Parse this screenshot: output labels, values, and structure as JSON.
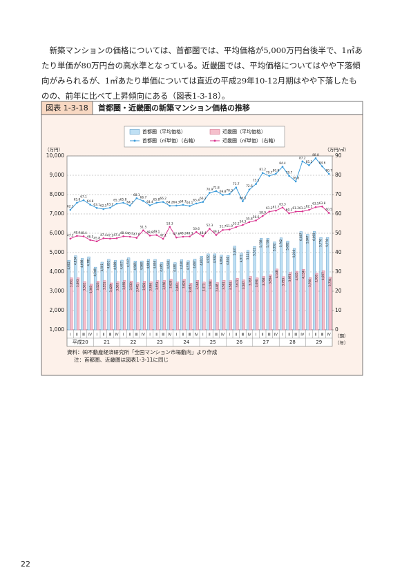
{
  "paragraph": "新築マンションの価格については、首都圏では、平均価格が5,000万円台後半で、1㎡あたり単価が80万円台の高水準となっている。近畿圏では、平均価格についてはやや下落傾向がみられるが、1㎡あたり単価については直近の平成29年10-12月期はやや下落したものの、前年に比べて上昇傾向にある（図表1-3-18）。",
  "figure_label": "図表 1-3-18",
  "figure_title": "首都圏・近畿圏の新築マンション価格の推移",
  "chart_data": {
    "type": "bar",
    "y_unit": "（万円）",
    "y2_unit": "（万円/㎡）",
    "x_unit_quarter": "（期）",
    "x_unit_year": "（年）",
    "categories": [
      "Ⅰ",
      "Ⅱ",
      "Ⅲ",
      "Ⅳ",
      "Ⅰ",
      "Ⅱ",
      "Ⅲ",
      "Ⅳ",
      "Ⅰ",
      "Ⅱ",
      "Ⅲ",
      "Ⅳ",
      "Ⅰ",
      "Ⅱ",
      "Ⅲ",
      "Ⅳ",
      "Ⅰ",
      "Ⅱ",
      "Ⅲ",
      "Ⅳ",
      "Ⅰ",
      "Ⅱ",
      "Ⅲ",
      "Ⅳ",
      "Ⅰ",
      "Ⅱ",
      "Ⅲ",
      "Ⅳ",
      "Ⅰ",
      "Ⅱ",
      "Ⅲ",
      "Ⅳ",
      "Ⅰ",
      "Ⅱ",
      "Ⅲ",
      "Ⅳ",
      "Ⅰ",
      "Ⅱ",
      "Ⅲ",
      "Ⅳ"
    ],
    "years": [
      "平成20",
      "21",
      "22",
      "23",
      "24",
      "25",
      "26",
      "27",
      "28",
      "29"
    ],
    "ylim": [
      1000,
      10000
    ],
    "yticks": [
      {
        "value": 1000,
        "label": "1,000"
      },
      {
        "value": 2000,
        "label": "2,000"
      },
      {
        "value": 3000,
        "label": "3,000"
      },
      {
        "value": 4000,
        "label": "4,000"
      },
      {
        "value": 5000,
        "label": "5,000"
      },
      {
        "value": 6000,
        "label": "6,000"
      },
      {
        "value": 7000,
        "label": "7,000"
      },
      {
        "value": 8000,
        "label": "8,000"
      },
      {
        "value": 9000,
        "label": "9,000"
      },
      {
        "value": 10000,
        "label": "10,000"
      }
    ],
    "y2lim": [
      0,
      90
    ],
    "y2ticks": [
      0,
      10,
      20,
      30,
      40,
      50,
      60,
      70,
      80,
      90
    ],
    "grid": true,
    "series": [
      {
        "name": "首都圏（平均価格）",
        "type": "bar",
        "color": "#bfe0f4",
        "edge": "#4a8fc0",
        "values": [
          4602,
          4834,
          4698,
          4781,
          4246,
          4501,
          4651,
          4589,
          4607,
          4727,
          4565,
          4568,
          4649,
          4646,
          4485,
          4638,
          4480,
          4630,
          4576,
          4667,
          4810,
          4932,
          4932,
          4864,
          4844,
          5337,
          4971,
          5113,
          5311,
          5738,
          5739,
          5552,
          5762,
          5602,
          5216,
          6087,
          5947,
          6093,
          5776,
          5778
        ],
        "value_labels": [
          "4,602",
          "4,834",
          "4,698",
          "4,781",
          "4,246",
          "4,501",
          "4,651",
          "4,589",
          "4,607",
          "4,727",
          "4,565",
          "4,568",
          "4,649",
          "4,646",
          "4,485",
          "4,638",
          "4,480",
          "4,630",
          "4,576",
          "4,667",
          "4,810",
          "4,932",
          "4,932",
          "4,864",
          "4,844",
          "5,337",
          "4,971",
          "5,113",
          "5,311",
          "5,738",
          "5,739",
          "5,552",
          "5,762",
          "5,602",
          "5,216",
          "6,087",
          "5,947",
          "6,093",
          "5,776",
          "5,778"
        ]
      },
      {
        "name": "近畿圏（平均価格）",
        "type": "bar",
        "color": "#f5c0cc",
        "edge": "#d0607f",
        "values": [
          3691,
          3693,
          3502,
          3363,
          3523,
          3551,
          3429,
          3503,
          3555,
          3530,
          3441,
          3521,
          3496,
          3551,
          3556,
          3628,
          3483,
          3626,
          3415,
          3564,
          3473,
          3588,
          3448,
          3561,
          3544,
          3672,
          3587,
          3767,
          3690,
          3768,
          3854,
          4148,
          3755,
          3973,
          4035,
          4134,
          3700,
          3930,
          4057,
          3734
        ],
        "value_labels": [
          "3,691",
          "3,693",
          "3,502",
          "3,363",
          "3,523",
          "3,551",
          "3,429",
          "3,503",
          "3,555",
          "3,530",
          "3,441",
          "3,521",
          "3,496",
          "3,551",
          "3,556",
          "3,628",
          "3,483",
          "3,626",
          "3,415",
          "3,564",
          "3,473",
          "3,588",
          "3,448",
          "3,561",
          "3,544",
          "3,672",
          "3,587",
          "3,767",
          "3,690",
          "3,768",
          "3,854",
          "4,148",
          "3,755",
          "3,973",
          "4,035",
          "4,134",
          "3,700",
          "3,930",
          "4,057",
          "3,734"
        ]
      },
      {
        "name": "首都圏（㎡単価）（右軸）",
        "type": "line",
        "axis": "y2",
        "color": "#3a9ad9",
        "values": [
          62.1,
          65.8,
          67.1,
          64.8,
          63.1,
          62.5,
          63.2,
          65.3,
          65.8,
          64.3,
          68.1,
          66.7,
          64.4,
          65.8,
          66.2,
          64.2,
          64.3,
          64.7,
          64.1,
          65.4,
          66.2,
          70.9,
          71.8,
          69.8,
          70.3,
          73.7,
          66.5,
          72.6,
          75.5,
          81.2,
          79.7,
          80.8,
          84.4,
          79.7,
          76.8,
          87.2,
          85.2,
          88.8,
          84.6,
          80.7
        ]
      },
      {
        "name": "近畿圏（㎡単価）（右軸）",
        "type": "line",
        "axis": "y2",
        "color": "#d9338f",
        "values": [
          47.2,
          48.6,
          48.4,
          46.5,
          45.8,
          47.4,
          47.2,
          47.4,
          48.4,
          48.2,
          47.6,
          51.5,
          48.8,
          49.1,
          47.1,
          53.3,
          47.8,
          48.2,
          48.3,
          50.6,
          48.4,
          52.3,
          49.1,
          51.7,
          51.9,
          53.2,
          54.3,
          55.8,
          56.6,
          58.9,
          61.2,
          61.7,
          63.3,
          60.3,
          61.2,
          61.3,
          62.1,
          63.5,
          63.8,
          60.5
        ]
      }
    ]
  },
  "notes": [
    "資料：㈱不動産経済研究所「全国マンション市場動向」より作成",
    "注：首都圏、近畿圏は図表1-3-11に同じ"
  ],
  "page_number": "22"
}
